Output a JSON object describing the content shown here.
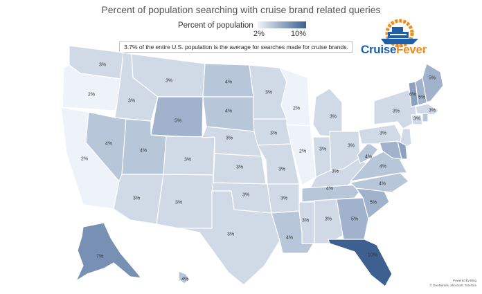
{
  "title": "Percent of population searching with cruise brand related queries",
  "legend": {
    "title": "Percent of population",
    "min_label": "2%",
    "max_label": "10%",
    "min": 2,
    "max": 10,
    "min_color": "#eef3f9",
    "max_color": "#3d6091"
  },
  "note": "3.7% of the entire U.S. population is the average for searches made for cruise brands.",
  "logo": {
    "part1": "Cruise",
    "part2": "Fever",
    "color1": "#1f5fa8",
    "color2": "#f08a1c"
  },
  "attribution": {
    "powered": "Powered by Bing",
    "credits": "© GeoNames, Microsoft, TomTom"
  },
  "chart_data": {
    "type": "choropleth",
    "unit": "%",
    "states": [
      {
        "name": "Washington",
        "value": 3,
        "label": "3%"
      },
      {
        "name": "Oregon",
        "value": 2,
        "label": "2%"
      },
      {
        "name": "California",
        "value": 2,
        "label": "2%"
      },
      {
        "name": "Idaho",
        "value": 3,
        "label": "3%"
      },
      {
        "name": "Nevada",
        "value": 4,
        "label": "4%"
      },
      {
        "name": "Montana",
        "value": 3,
        "label": "3%"
      },
      {
        "name": "Wyoming",
        "value": 5,
        "label": "5%"
      },
      {
        "name": "Utah",
        "value": 4,
        "label": "4%"
      },
      {
        "name": "Arizona",
        "value": 3,
        "label": "3%"
      },
      {
        "name": "Colorado",
        "value": 3,
        "label": "3%"
      },
      {
        "name": "New Mexico",
        "value": 3,
        "label": "3%"
      },
      {
        "name": "North Dakota",
        "value": 4,
        "label": "4%"
      },
      {
        "name": "South Dakota",
        "value": 4,
        "label": "4%"
      },
      {
        "name": "Nebraska",
        "value": 3,
        "label": "3%"
      },
      {
        "name": "Kansas",
        "value": 3,
        "label": "3%"
      },
      {
        "name": "Oklahoma",
        "value": 3,
        "label": "3%"
      },
      {
        "name": "Texas",
        "value": 3,
        "label": "3%"
      },
      {
        "name": "Minnesota",
        "value": 3,
        "label": "3%"
      },
      {
        "name": "Iowa",
        "value": 3,
        "label": "3%"
      },
      {
        "name": "Missouri",
        "value": 3,
        "label": "3%"
      },
      {
        "name": "Arkansas",
        "value": 3,
        "label": "3%"
      },
      {
        "name": "Louisiana",
        "value": 4,
        "label": "4%"
      },
      {
        "name": "Wisconsin",
        "value": 2,
        "label": "2%"
      },
      {
        "name": "Illinois",
        "value": 2,
        "label": "2%"
      },
      {
        "name": "Michigan",
        "value": 3,
        "label": "3%"
      },
      {
        "name": "Indiana",
        "value": 3,
        "label": "3%"
      },
      {
        "name": "Ohio",
        "value": 3,
        "label": "3%"
      },
      {
        "name": "Kentucky",
        "value": 3,
        "label": "3%"
      },
      {
        "name": "Tennessee",
        "value": 4,
        "label": "4%"
      },
      {
        "name": "Mississippi",
        "value": 3,
        "label": "3%"
      },
      {
        "name": "Alabama",
        "value": 3,
        "label": "3%"
      },
      {
        "name": "Georgia",
        "value": 5,
        "label": "5%"
      },
      {
        "name": "Florida",
        "value": 10,
        "label": "10%"
      },
      {
        "name": "South Carolina",
        "value": 5,
        "label": "5%"
      },
      {
        "name": "North Carolina",
        "value": 4,
        "label": "4%"
      },
      {
        "name": "Virginia",
        "value": 4,
        "label": "4%"
      },
      {
        "name": "West Virginia",
        "value": 4,
        "label": "4%"
      },
      {
        "name": "Pennsylvania",
        "value": 3,
        "label": "3%"
      },
      {
        "name": "New York",
        "value": 3,
        "label": "3%"
      },
      {
        "name": "Vermont",
        "value": 6,
        "label": "6%"
      },
      {
        "name": "New Hampshire",
        "value": 5,
        "label": "5%"
      },
      {
        "name": "Maine",
        "value": 5,
        "label": "5%"
      },
      {
        "name": "Massachusetts",
        "value": 3,
        "label": "3%"
      },
      {
        "name": "Connecticut",
        "value": 3,
        "label": "3%"
      },
      {
        "name": "Rhode Island",
        "value": 4,
        "label": ""
      },
      {
        "name": "New Jersey",
        "value": 3,
        "label": ""
      },
      {
        "name": "Delaware",
        "value": 6,
        "label": ""
      },
      {
        "name": "Maryland",
        "value": 5,
        "label": ""
      },
      {
        "name": "Alaska",
        "value": 7,
        "label": "7%"
      },
      {
        "name": "Hawaii",
        "value": 4,
        "label": "4%"
      }
    ]
  }
}
